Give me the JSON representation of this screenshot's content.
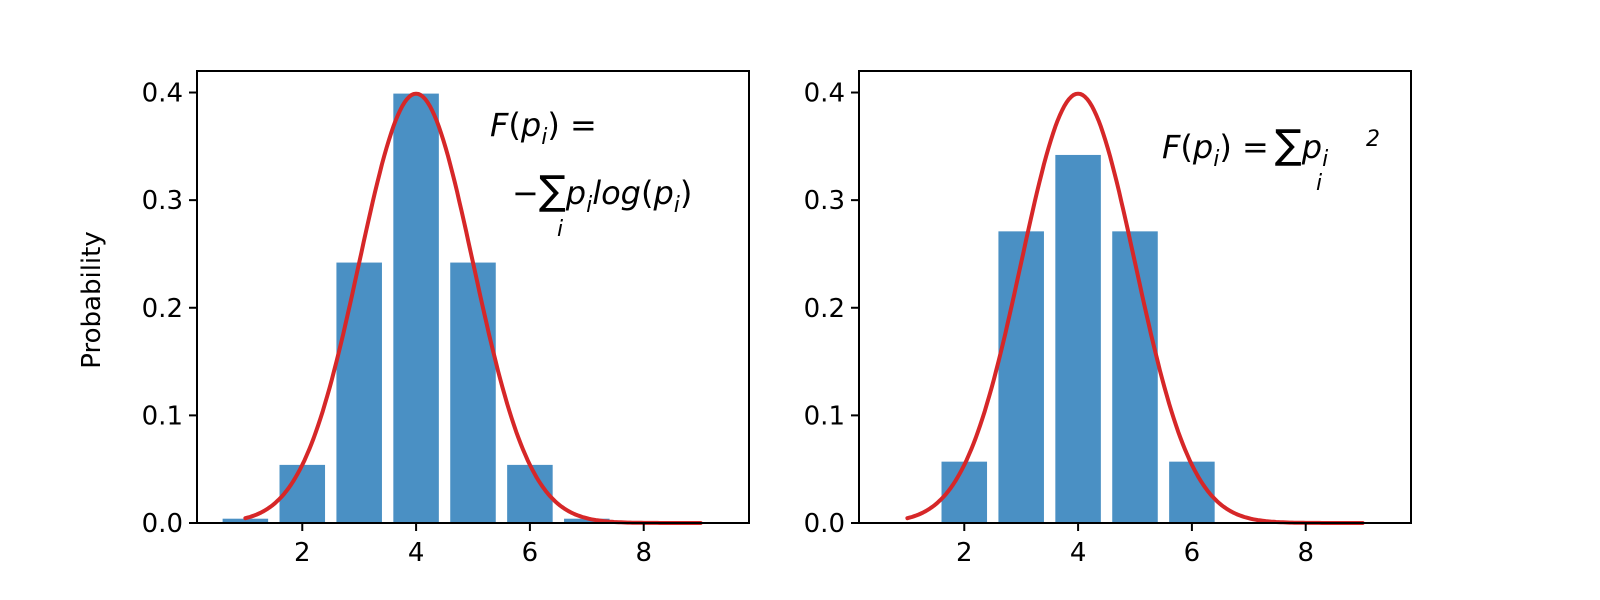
{
  "chart_data": [
    {
      "type": "bar",
      "ylabel": "Probability",
      "xlim": [
        0.15,
        9.85
      ],
      "ylim": [
        0,
        0.42
      ],
      "xticks": [
        "2",
        "4",
        "6",
        "8"
      ],
      "yticks": [
        "0.0",
        "0.1",
        "0.2",
        "0.3",
        "0.4"
      ],
      "categories": [
        1,
        2,
        3,
        4,
        5,
        6,
        7
      ],
      "values": [
        0.004,
        0.054,
        0.242,
        0.399,
        0.242,
        0.054,
        0.004
      ],
      "bar_color": "#4a90c4",
      "curve": {
        "type": "line",
        "color": "#d62728",
        "mean": 4,
        "sd": 1,
        "x_range": [
          1,
          9
        ]
      },
      "annotation": {
        "line1": {
          "F": "F",
          "p": "p",
          "i": "i",
          "rest": ") ="
        },
        "line2": {
          "minus": "−",
          "sum": "∑",
          "sum_i": "i",
          "p": "p",
          "p_i": "i",
          "log": "log",
          "lp": "(",
          "p2": "p",
          "p2_i": "i",
          "rp": ")"
        }
      }
    },
    {
      "type": "bar",
      "ylabel": "",
      "xlim": [
        0.15,
        9.85
      ],
      "ylim": [
        0,
        0.42
      ],
      "xticks": [
        "2",
        "4",
        "6",
        "8"
      ],
      "yticks": [
        "0.0",
        "0.1",
        "0.2",
        "0.3",
        "0.4"
      ],
      "categories": [
        2,
        3,
        4,
        5,
        6
      ],
      "values": [
        0.057,
        0.271,
        0.342,
        0.271,
        0.057
      ],
      "bar_color": "#4a90c4",
      "curve": {
        "type": "line",
        "color": "#d62728",
        "mean": 4,
        "sd": 1,
        "x_range": [
          1,
          9
        ]
      },
      "annotation": {
        "F": "F",
        "p": "p",
        "i": "i",
        "eq": ") =",
        "sum": "∑",
        "sum_i": "i",
        "p2": "p",
        "p2_i": "i",
        "p2_exp": "2"
      }
    }
  ]
}
